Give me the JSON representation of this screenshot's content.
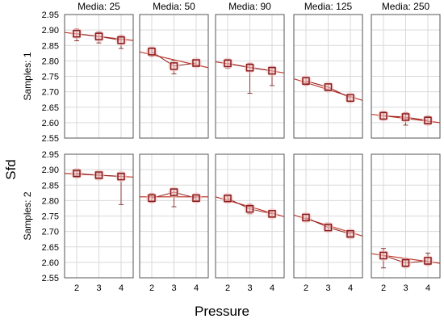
{
  "chart_data": {
    "type": "line",
    "ylabel": "Sfd",
    "xlabel": "Pressure",
    "x": [
      2,
      3,
      4
    ],
    "ylim": [
      2.55,
      2.95
    ],
    "yticks": [
      "2.55",
      "2.60",
      "2.65",
      "2.70",
      "2.75",
      "2.80",
      "2.85",
      "2.90",
      "2.95"
    ],
    "xticks": [
      "2",
      "3",
      "4"
    ],
    "grid": true,
    "colors": {
      "marker": "#8b1a1a",
      "fit_line": "#c0392b",
      "marker_fill": "#f2c4c4",
      "error_bar": "#8b3a3a",
      "panel_border": "#555555",
      "grid": "#d9d9d9"
    },
    "columns": [
      "Media: 25",
      "Media: 50",
      "Media: 90",
      "Media: 125",
      "Media: 250"
    ],
    "rows": [
      "Samples: 1",
      "Samples: 2"
    ],
    "panels": [
      [
        {
          "means": [
            2.888,
            2.879,
            2.867
          ],
          "lower": [
            2.865,
            2.858,
            2.84
          ],
          "upper": [
            2.903,
            2.893,
            2.882
          ],
          "fit": [
            2.892,
            2.866
          ]
        },
        {
          "means": [
            2.83,
            2.783,
            2.793
          ],
          "lower": [
            2.815,
            2.758,
            2.783
          ],
          "upper": [
            2.843,
            2.802,
            2.802
          ],
          "fit": [
            2.829,
            2.778
          ]
        },
        {
          "means": [
            2.792,
            2.778,
            2.768
          ],
          "lower": [
            2.776,
            2.695,
            2.72
          ],
          "upper": [
            2.805,
            2.792,
            2.78
          ],
          "fit": [
            2.797,
            2.761
          ]
        },
        {
          "means": [
            2.735,
            2.715,
            2.68
          ],
          "lower": [
            2.722,
            2.703,
            2.668
          ],
          "upper": [
            2.747,
            2.725,
            2.69
          ],
          "fit": [
            2.742,
            2.672
          ]
        },
        {
          "means": [
            2.622,
            2.618,
            2.607
          ],
          "lower": [
            2.61,
            2.592,
            2.595
          ],
          "upper": [
            2.635,
            2.632,
            2.62
          ],
          "fit": [
            2.627,
            2.6
          ]
        }
      ],
      [
        {
          "means": [
            2.888,
            2.882,
            2.878
          ],
          "lower": [
            2.88,
            2.875,
            2.787
          ],
          "upper": [
            2.895,
            2.888,
            2.885
          ],
          "fit": [
            2.888,
            2.876
          ]
        },
        {
          "means": [
            2.808,
            2.827,
            2.808
          ],
          "lower": [
            2.795,
            2.78,
            2.8
          ],
          "upper": [
            2.822,
            2.838,
            2.817
          ],
          "fit": [
            2.812,
            2.812
          ]
        },
        {
          "means": [
            2.807,
            2.773,
            2.757
          ],
          "lower": [
            2.798,
            2.757,
            2.748
          ],
          "upper": [
            2.815,
            2.788,
            2.767
          ],
          "fit": [
            2.812,
            2.748
          ]
        },
        {
          "means": [
            2.745,
            2.713,
            2.692
          ],
          "lower": [
            2.735,
            2.702,
            2.685
          ],
          "upper": [
            2.755,
            2.722,
            2.698
          ],
          "fit": [
            2.753,
            2.685
          ]
        },
        {
          "means": [
            2.622,
            2.598,
            2.605
          ],
          "lower": [
            2.582,
            2.585,
            2.592
          ],
          "upper": [
            2.645,
            2.612,
            2.63
          ],
          "fit": [
            2.628,
            2.597
          ]
        }
      ]
    ]
  }
}
